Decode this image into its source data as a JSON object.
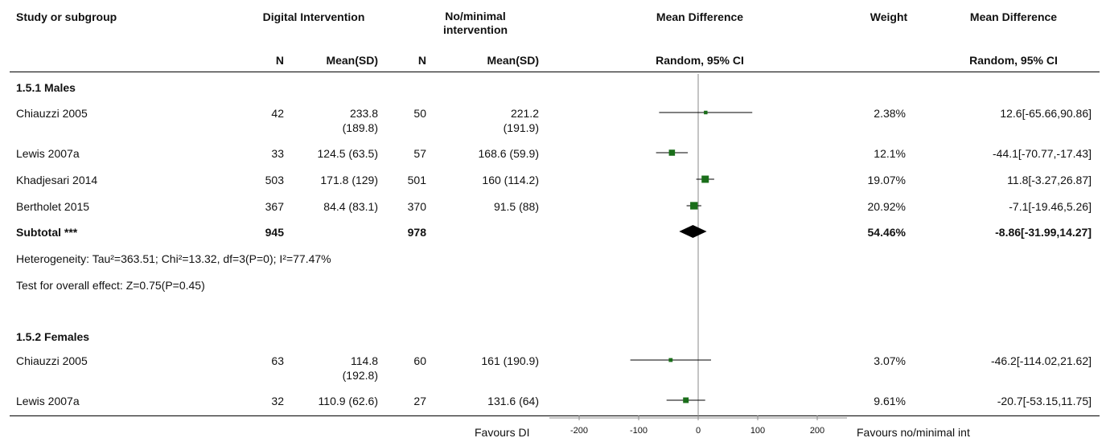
{
  "header": {
    "study": "Study or subgroup",
    "group1": "Digital Intervention",
    "group2": "No/minimal intervention",
    "effect": "Mean Difference",
    "weight": "Weight",
    "effect_ci": "Mean Difference",
    "n1": "N",
    "mean1": "Mean(SD)",
    "n2": "N",
    "mean2": "Mean(SD)",
    "method": "Random, 95% CI",
    "method_ci": "Random, 95% CI"
  },
  "sub1": {
    "title": "1.5.1 Males",
    "rows": [
      {
        "study": "Chiauzzi 2005",
        "n1": "42",
        "mean1": "233.8 (189.8)",
        "n2": "50",
        "mean2": "221.2 (191.9)",
        "weight": "2.38%",
        "ci": "12.6[-65.66,90.86]"
      },
      {
        "study": "Lewis 2007a",
        "n1": "33",
        "mean1": "124.5 (63.5)",
        "n2": "57",
        "mean2": "168.6 (59.9)",
        "weight": "12.1%",
        "ci": "-44.1[-70.77,-17.43]"
      },
      {
        "study": "Khadjesari 2014",
        "n1": "503",
        "mean1": "171.8 (129)",
        "n2": "501",
        "mean2": "160 (114.2)",
        "weight": "19.07%",
        "ci": "11.8[-3.27,26.87]"
      },
      {
        "study": "Bertholet 2015",
        "n1": "367",
        "mean1": "84.4 (83.1)",
        "n2": "370",
        "mean2": "91.5 (88)",
        "weight": "20.92%",
        "ci": "-7.1[-19.46,5.26]"
      }
    ],
    "subtotal": {
      "label": "Subtotal ***",
      "n1": "945",
      "n2": "978",
      "weight": "54.46%",
      "ci": "-8.86[-31.99,14.27]"
    },
    "heterogeneity": "Heterogeneity: Tau²=363.51; Chi²=13.32, df=3(P=0); I²=77.47%",
    "overall": "Test for overall effect: Z=0.75(P=0.45)"
  },
  "sub2": {
    "title": "1.5.2 Females",
    "rows": [
      {
        "study": "Chiauzzi 2005",
        "n1": "63",
        "mean1": "114.8 (192.8)",
        "n2": "60",
        "mean2": "161 (190.9)",
        "weight": "3.07%",
        "ci": "-46.2[-114.02,21.62]"
      },
      {
        "study": "Lewis 2007a",
        "n1": "32",
        "mean1": "110.9 (62.6)",
        "n2": "27",
        "mean2": "131.6 (64)",
        "weight": "9.61%",
        "ci": "-20.7[-53.15,11.75]"
      }
    ]
  },
  "footer": {
    "favours_left": "Favours DI",
    "favours_right": "Favours no/minimal int"
  },
  "colors": {
    "marker": "#1a6e1a",
    "line": "#000000",
    "diamond": "#000000",
    "axis": "#888888"
  },
  "chart_data": {
    "type": "forest",
    "xlim": [
      -250,
      250
    ],
    "ticks": [
      -200,
      -100,
      0,
      100,
      200
    ],
    "tick_labels": [
      "-200",
      "-100",
      "0",
      "100",
      "200"
    ],
    "reference_line": 0,
    "studies": [
      {
        "label": "Chiauzzi 2005 (Males)",
        "md": 12.6,
        "lo": -65.66,
        "hi": 90.86,
        "weight": 2.38
      },
      {
        "label": "Lewis 2007a (Males)",
        "md": -44.1,
        "lo": -70.77,
        "hi": -17.43,
        "weight": 12.1
      },
      {
        "label": "Khadjesari 2014 (Males)",
        "md": 11.8,
        "lo": -3.27,
        "hi": 26.87,
        "weight": 19.07
      },
      {
        "label": "Bertholet 2015 (Males)",
        "md": -7.1,
        "lo": -19.46,
        "hi": 5.26,
        "weight": 20.92
      },
      {
        "label": "Chiauzzi 2005 (Females)",
        "md": -46.2,
        "lo": -114.02,
        "hi": 21.62,
        "weight": 3.07
      },
      {
        "label": "Lewis 2007a (Females)",
        "md": -20.7,
        "lo": -53.15,
        "hi": 11.75,
        "weight": 9.61
      }
    ],
    "subtotals": [
      {
        "label": "Subtotal (Males)",
        "md": -8.86,
        "lo": -31.99,
        "hi": 14.27,
        "weight": 54.46
      }
    ]
  }
}
